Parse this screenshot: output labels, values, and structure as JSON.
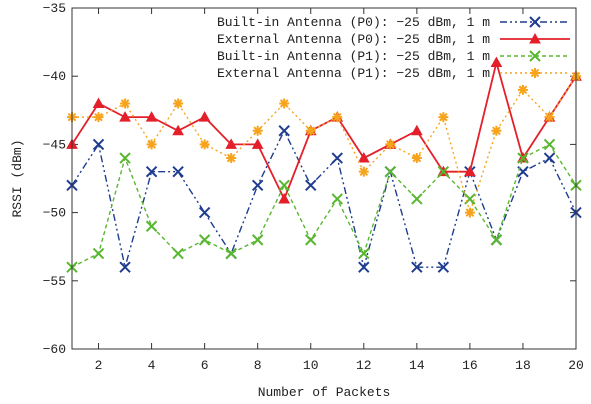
{
  "chart_data": {
    "type": "line",
    "xlabel": "Number of Packets",
    "ylabel": "RSSI (dBm)",
    "xlim": [
      1,
      20
    ],
    "ylim": [
      -60,
      -35
    ],
    "xticks": [
      2,
      4,
      6,
      8,
      10,
      12,
      14,
      16,
      18,
      20
    ],
    "yticks": [
      -60,
      -55,
      -50,
      -45,
      -40,
      -35
    ],
    "xtick_labels": [
      "2",
      "4",
      "6",
      "8",
      "10",
      "12",
      "14",
      "16",
      "18",
      "20"
    ],
    "ytick_labels": [
      "−60",
      "−55",
      "−50",
      "−45",
      "−40",
      "−35"
    ],
    "grid": false,
    "legend_position": "top-right",
    "x": [
      1,
      2,
      3,
      4,
      5,
      6,
      7,
      8,
      9,
      10,
      11,
      12,
      13,
      14,
      15,
      16,
      17,
      18,
      19,
      20
    ],
    "series": [
      {
        "name": "Built-in Antenna (P0): −25 dBm, 1 m",
        "color": "#1f3c8f",
        "marker": "x",
        "dash": "7 3 2 3 2 3",
        "values": [
          -48,
          -45,
          -54,
          -47,
          -47,
          -50,
          -53,
          -48,
          -44,
          -48,
          -46,
          -54,
          -47,
          -54,
          -54,
          -47,
          -52,
          -47,
          -46,
          -50
        ]
      },
      {
        "name": "External Antenna (P0): −25 dBm, 1 m",
        "color": "#e3202a",
        "marker": "triangle",
        "dash": "",
        "values": [
          -45,
          -42,
          -43,
          -43,
          -44,
          -43,
          -45,
          -45,
          -49,
          -44,
          -43,
          -46,
          -45,
          -44,
          -47,
          -47,
          -39,
          -46,
          -43,
          -40
        ]
      },
      {
        "name": "Built-in Antenna (P1): −25 dBm, 1 m",
        "color": "#58b72f",
        "marker": "x",
        "dash": "4 3",
        "values": [
          -54,
          -53,
          -46,
          -51,
          -53,
          -52,
          -53,
          -52,
          -48,
          -52,
          -49,
          -53,
          -47,
          -49,
          -47,
          -49,
          -52,
          -46,
          -45,
          -48
        ]
      },
      {
        "name": "External Antenna (P1): −25 dBm, 1 m",
        "color": "#f7a41c",
        "marker": "star",
        "dash": "2 3",
        "values": [
          -43,
          -43,
          -42,
          -45,
          -42,
          -45,
          -46,
          -44,
          -42,
          -44,
          -43,
          -47,
          -45,
          -46,
          -43,
          -50,
          -44,
          -41,
          -43,
          -40
        ]
      }
    ]
  }
}
